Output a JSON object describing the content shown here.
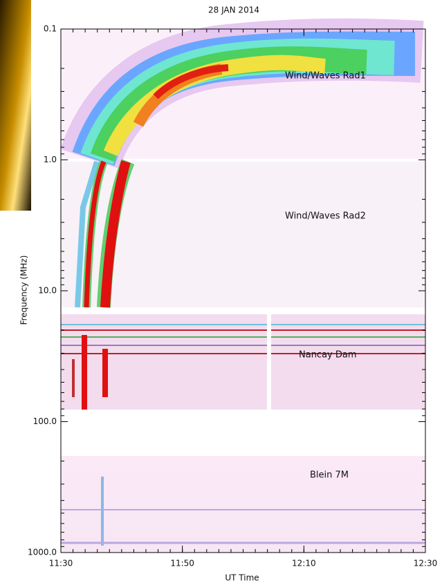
{
  "chart_data": {
    "type": "spectrogram",
    "title": "28 JAN 2014",
    "xlabel": "UT Time",
    "ylabel": "Frequency (MHz)",
    "xlim": [
      "11:30",
      "12:30"
    ],
    "xticks": [
      "11:30",
      "11:50",
      "12:10",
      "12:30"
    ],
    "ylim": [
      0.1,
      1000
    ],
    "yscale": "log",
    "yinverted": true,
    "yticks": [
      0.1,
      {
        "value": 1,
        "label": "1.0"
      },
      {
        "value": 10,
        "label": "10.0"
      },
      {
        "value": 100,
        "label": "100.0"
      },
      {
        "value": 1000,
        "label": "1000.0"
      }
    ],
    "annotations": [
      "Wind/Waves Rad1",
      "Wind/Waves Rad2",
      "Nancay Dam",
      "Blein 7M"
    ]
  }
}
